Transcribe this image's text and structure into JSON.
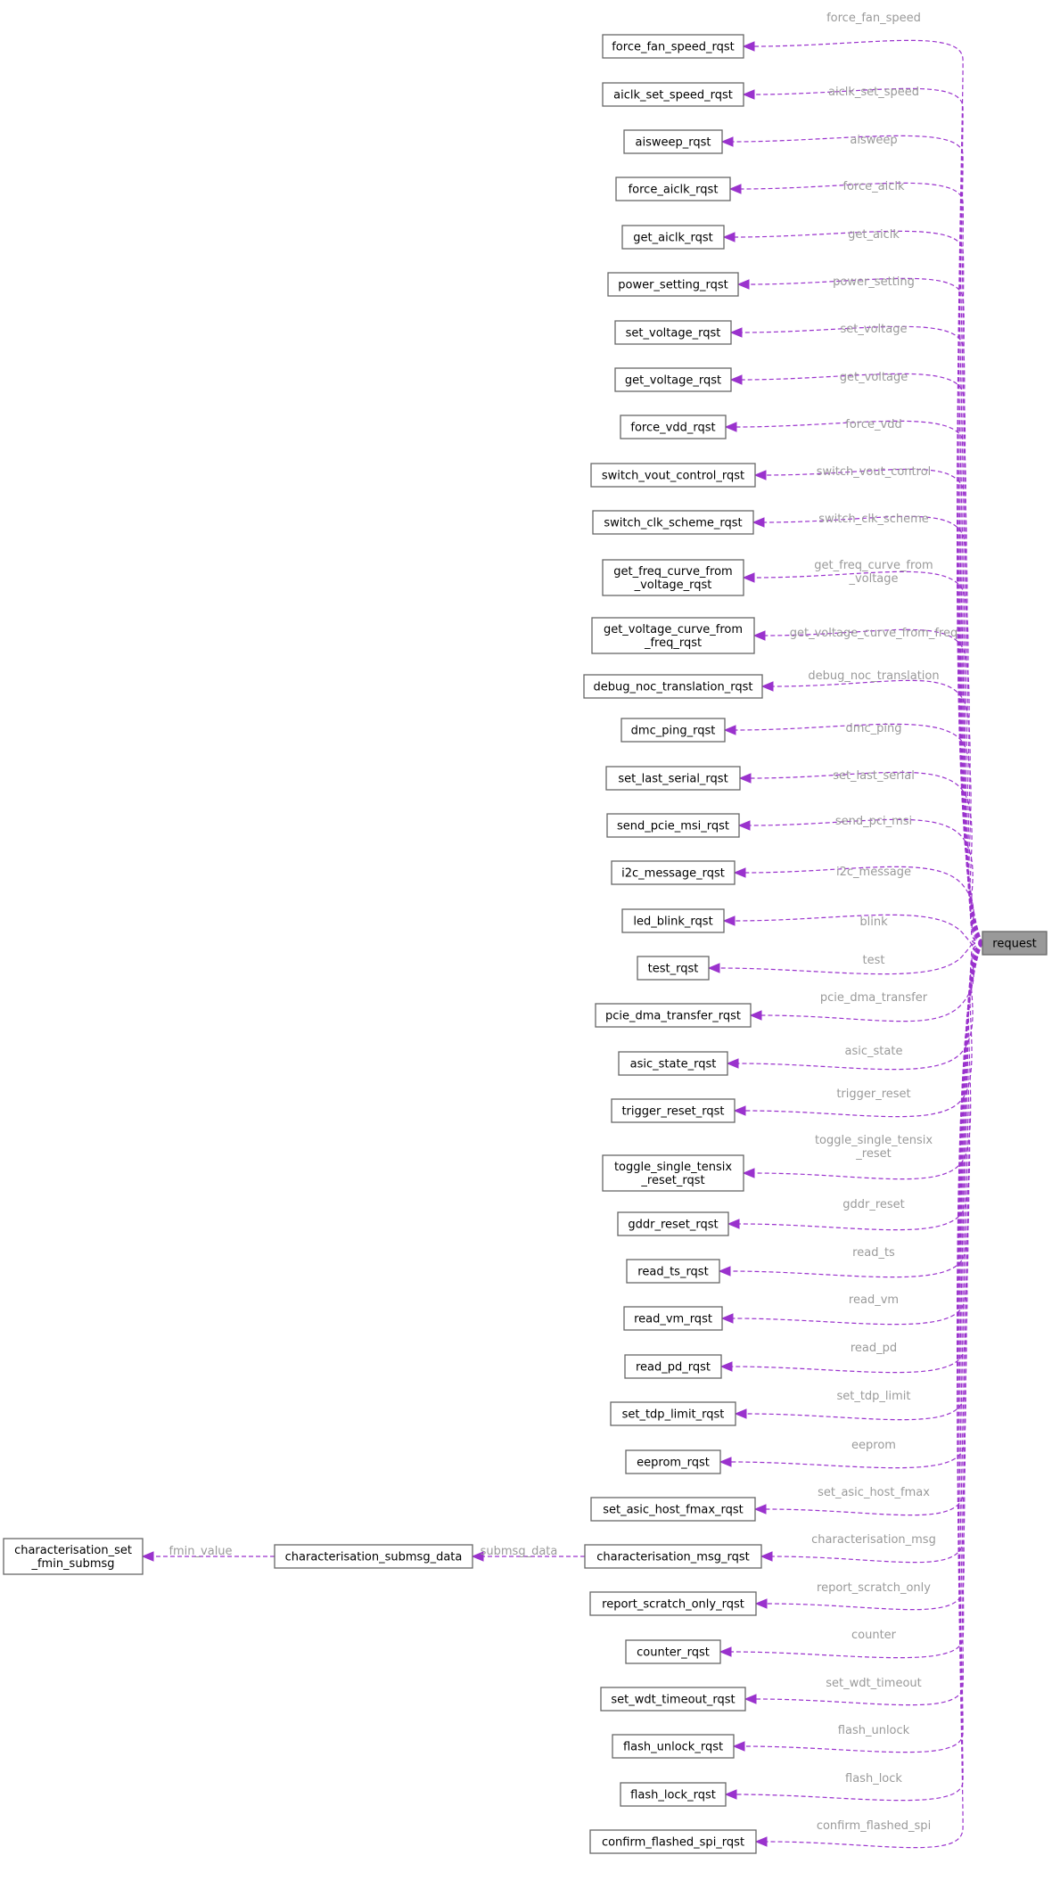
{
  "colors": {
    "edge": "#9a32cd",
    "edge_label": "#9a9a9a",
    "root_fill": "#999999",
    "node_border": "#666666"
  },
  "root": {
    "id": "request",
    "label": "request"
  },
  "nodes": [
    {
      "id": "force_fan_speed_rqst",
      "lines": [
        "force_fan_speed_rqst"
      ]
    },
    {
      "id": "aiclk_set_speed_rqst",
      "lines": [
        "aiclk_set_speed_rqst"
      ]
    },
    {
      "id": "aisweep_rqst",
      "lines": [
        "aisweep_rqst"
      ]
    },
    {
      "id": "force_aiclk_rqst",
      "lines": [
        "force_aiclk_rqst"
      ]
    },
    {
      "id": "get_aiclk_rqst",
      "lines": [
        "get_aiclk_rqst"
      ]
    },
    {
      "id": "power_setting_rqst",
      "lines": [
        "power_setting_rqst"
      ]
    },
    {
      "id": "set_voltage_rqst",
      "lines": [
        "set_voltage_rqst"
      ]
    },
    {
      "id": "get_voltage_rqst",
      "lines": [
        "get_voltage_rqst"
      ]
    },
    {
      "id": "force_vdd_rqst",
      "lines": [
        "force_vdd_rqst"
      ]
    },
    {
      "id": "switch_vout_control_rqst",
      "lines": [
        "switch_vout_control_rqst"
      ]
    },
    {
      "id": "switch_clk_scheme_rqst",
      "lines": [
        "switch_clk_scheme_rqst"
      ]
    },
    {
      "id": "get_freq_curve_from_voltage_rqst",
      "lines": [
        "get_freq_curve_from",
        "_voltage_rqst"
      ]
    },
    {
      "id": "get_voltage_curve_from_freq_rqst",
      "lines": [
        "get_voltage_curve_from",
        "_freq_rqst"
      ]
    },
    {
      "id": "debug_noc_translation_rqst",
      "lines": [
        "debug_noc_translation_rqst"
      ]
    },
    {
      "id": "dmc_ping_rqst",
      "lines": [
        "dmc_ping_rqst"
      ]
    },
    {
      "id": "set_last_serial_rqst",
      "lines": [
        "set_last_serial_rqst"
      ]
    },
    {
      "id": "send_pcie_msi_rqst",
      "lines": [
        "send_pcie_msi_rqst"
      ]
    },
    {
      "id": "i2c_message_rqst",
      "lines": [
        "i2c_message_rqst"
      ]
    },
    {
      "id": "led_blink_rqst",
      "lines": [
        "led_blink_rqst"
      ]
    },
    {
      "id": "test_rqst",
      "lines": [
        "test_rqst"
      ]
    },
    {
      "id": "pcie_dma_transfer_rqst",
      "lines": [
        "pcie_dma_transfer_rqst"
      ]
    },
    {
      "id": "asic_state_rqst",
      "lines": [
        "asic_state_rqst"
      ]
    },
    {
      "id": "trigger_reset_rqst",
      "lines": [
        "trigger_reset_rqst"
      ]
    },
    {
      "id": "toggle_single_tensix_reset_rqst",
      "lines": [
        "toggle_single_tensix",
        "_reset_rqst"
      ]
    },
    {
      "id": "gddr_reset_rqst",
      "lines": [
        "gddr_reset_rqst"
      ]
    },
    {
      "id": "read_ts_rqst",
      "lines": [
        "read_ts_rqst"
      ]
    },
    {
      "id": "read_vm_rqst",
      "lines": [
        "read_vm_rqst"
      ]
    },
    {
      "id": "read_pd_rqst",
      "lines": [
        "read_pd_rqst"
      ]
    },
    {
      "id": "set_tdp_limit_rqst",
      "lines": [
        "set_tdp_limit_rqst"
      ]
    },
    {
      "id": "eeprom_rqst",
      "lines": [
        "eeprom_rqst"
      ]
    },
    {
      "id": "set_asic_host_fmax_rqst",
      "lines": [
        "set_asic_host_fmax_rqst"
      ]
    },
    {
      "id": "characterisation_msg_rqst",
      "lines": [
        "characterisation_msg_rqst"
      ]
    },
    {
      "id": "report_scratch_only_rqst",
      "lines": [
        "report_scratch_only_rqst"
      ]
    },
    {
      "id": "counter_rqst",
      "lines": [
        "counter_rqst"
      ]
    },
    {
      "id": "set_wdt_timeout_rqst",
      "lines": [
        "set_wdt_timeout_rqst"
      ]
    },
    {
      "id": "flash_unlock_rqst",
      "lines": [
        "flash_unlock_rqst"
      ]
    },
    {
      "id": "flash_lock_rqst",
      "lines": [
        "flash_lock_rqst"
      ]
    },
    {
      "id": "confirm_flashed_spi_rqst",
      "lines": [
        "confirm_flashed_spi_rqst"
      ]
    },
    {
      "id": "characterisation_submsg_data",
      "lines": [
        "characterisation_submsg_data"
      ]
    },
    {
      "id": "characterisation_set_fmin_submsg",
      "lines": [
        "characterisation_set",
        "_fmin_submsg"
      ]
    }
  ],
  "edges": [
    {
      "from": "request",
      "to": "force_fan_speed_rqst",
      "label": [
        "force_fan_speed"
      ]
    },
    {
      "from": "request",
      "to": "aiclk_set_speed_rqst",
      "label": [
        "aiclk_set_speed"
      ]
    },
    {
      "from": "request",
      "to": "aisweep_rqst",
      "label": [
        "aisweep"
      ]
    },
    {
      "from": "request",
      "to": "force_aiclk_rqst",
      "label": [
        "force_aiclk"
      ]
    },
    {
      "from": "request",
      "to": "get_aiclk_rqst",
      "label": [
        "get_aiclk"
      ]
    },
    {
      "from": "request",
      "to": "power_setting_rqst",
      "label": [
        "power_setting"
      ]
    },
    {
      "from": "request",
      "to": "set_voltage_rqst",
      "label": [
        "set_voltage"
      ]
    },
    {
      "from": "request",
      "to": "get_voltage_rqst",
      "label": [
        "get_voltage"
      ]
    },
    {
      "from": "request",
      "to": "force_vdd_rqst",
      "label": [
        "force_vdd"
      ]
    },
    {
      "from": "request",
      "to": "switch_vout_control_rqst",
      "label": [
        "switch_vout_control"
      ]
    },
    {
      "from": "request",
      "to": "switch_clk_scheme_rqst",
      "label": [
        "switch_clk_scheme"
      ]
    },
    {
      "from": "request",
      "to": "get_freq_curve_from_voltage_rqst",
      "label": [
        "get_freq_curve_from",
        "_voltage"
      ]
    },
    {
      "from": "request",
      "to": "get_voltage_curve_from_freq_rqst",
      "label": [
        "get_voltage_curve_from_freq"
      ]
    },
    {
      "from": "request",
      "to": "debug_noc_translation_rqst",
      "label": [
        "debug_noc_translation"
      ]
    },
    {
      "from": "request",
      "to": "dmc_ping_rqst",
      "label": [
        "dmc_ping"
      ]
    },
    {
      "from": "request",
      "to": "set_last_serial_rqst",
      "label": [
        "set_last_serial"
      ]
    },
    {
      "from": "request",
      "to": "send_pcie_msi_rqst",
      "label": [
        "send_pci_msi"
      ]
    },
    {
      "from": "request",
      "to": "i2c_message_rqst",
      "label": [
        "i2c_message"
      ]
    },
    {
      "from": "request",
      "to": "led_blink_rqst",
      "label": [
        "blink"
      ]
    },
    {
      "from": "request",
      "to": "test_rqst",
      "label": [
        "test"
      ]
    },
    {
      "from": "request",
      "to": "pcie_dma_transfer_rqst",
      "label": [
        "pcie_dma_transfer"
      ]
    },
    {
      "from": "request",
      "to": "asic_state_rqst",
      "label": [
        "asic_state"
      ]
    },
    {
      "from": "request",
      "to": "trigger_reset_rqst",
      "label": [
        "trigger_reset"
      ]
    },
    {
      "from": "request",
      "to": "toggle_single_tensix_reset_rqst",
      "label": [
        "toggle_single_tensix",
        "_reset"
      ]
    },
    {
      "from": "request",
      "to": "gddr_reset_rqst",
      "label": [
        "gddr_reset"
      ]
    },
    {
      "from": "request",
      "to": "read_ts_rqst",
      "label": [
        "read_ts"
      ]
    },
    {
      "from": "request",
      "to": "read_vm_rqst",
      "label": [
        "read_vm"
      ]
    },
    {
      "from": "request",
      "to": "read_pd_rqst",
      "label": [
        "read_pd"
      ]
    },
    {
      "from": "request",
      "to": "set_tdp_limit_rqst",
      "label": [
        "set_tdp_limit"
      ]
    },
    {
      "from": "request",
      "to": "eeprom_rqst",
      "label": [
        "eeprom"
      ]
    },
    {
      "from": "request",
      "to": "set_asic_host_fmax_rqst",
      "label": [
        "set_asic_host_fmax"
      ]
    },
    {
      "from": "request",
      "to": "characterisation_msg_rqst",
      "label": [
        "characterisation_msg"
      ]
    },
    {
      "from": "request",
      "to": "report_scratch_only_rqst",
      "label": [
        "report_scratch_only"
      ]
    },
    {
      "from": "request",
      "to": "counter_rqst",
      "label": [
        "counter"
      ]
    },
    {
      "from": "request",
      "to": "set_wdt_timeout_rqst",
      "label": [
        "set_wdt_timeout"
      ]
    },
    {
      "from": "request",
      "to": "flash_unlock_rqst",
      "label": [
        "flash_unlock"
      ]
    },
    {
      "from": "request",
      "to": "flash_lock_rqst",
      "label": [
        "flash_lock"
      ]
    },
    {
      "from": "request",
      "to": "confirm_flashed_spi_rqst",
      "label": [
        "confirm_flashed_spi"
      ]
    },
    {
      "from": "characterisation_msg_rqst",
      "to": "characterisation_submsg_data",
      "label": [
        "submsg_data"
      ]
    },
    {
      "from": "characterisation_submsg_data",
      "to": "characterisation_set_fmin_submsg",
      "label": [
        "fmin_value"
      ]
    }
  ]
}
